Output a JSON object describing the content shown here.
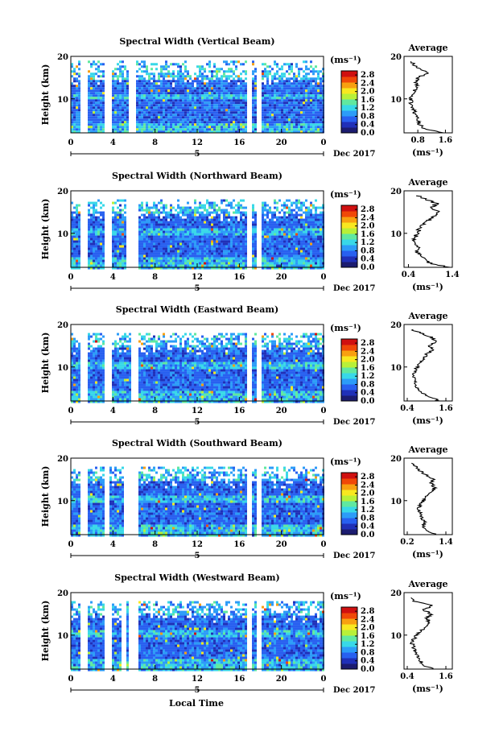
{
  "chart_data": {
    "type": "heatmap",
    "xlabel": "Local Time",
    "ylabel": "Height (km)",
    "x_ticks": [
      "0",
      "4",
      "8",
      "12",
      "16",
      "20",
      "0"
    ],
    "xlim": [
      0,
      24
    ],
    "y_ticks": [
      "20",
      "10"
    ],
    "ylim": [
      2,
      20
    ],
    "day_label": "5",
    "date_label": "Dec 2017",
    "colorbar": {
      "unit_label": "(ms⁻¹)",
      "ticks": [
        "2.8",
        "2.4",
        "2.0",
        "1.6",
        "1.2",
        "0.8",
        "0.4",
        "0.0"
      ],
      "range": [
        0,
        3.0
      ],
      "colors": [
        "#1c1c70",
        "#2030b8",
        "#2860f0",
        "#2c9cf8",
        "#38d8e8",
        "#60e8a0",
        "#b8f038",
        "#f8e820",
        "#f8a010",
        "#f04808",
        "#d01010"
      ]
    },
    "average": {
      "title": "Average",
      "xlabel": "(ms⁻¹)"
    },
    "panels": [
      {
        "title": "Spectral Width (Vertical Beam)",
        "avg_ticks": [
          "0.8",
          "1.6"
        ],
        "avg_xlim": [
          0.4,
          1.8
        ],
        "top_km": 19,
        "gaps": [
          [
            0.9,
            1.6
          ],
          [
            3.2,
            3.7
          ],
          [
            5.3,
            6.0
          ],
          [
            16.6,
            17.0
          ],
          [
            17.5,
            18.0
          ]
        ],
        "profile": [
          [
            2,
            1.5
          ],
          [
            3,
            1.0
          ],
          [
            4,
            0.85
          ],
          [
            5,
            0.8
          ],
          [
            6,
            0.75
          ],
          [
            7,
            0.7
          ],
          [
            8,
            0.65
          ],
          [
            9,
            0.6
          ],
          [
            10,
            0.6
          ],
          [
            11,
            0.65
          ],
          [
            12,
            0.7
          ],
          [
            13,
            0.8
          ],
          [
            14,
            0.75
          ],
          [
            15,
            0.8
          ],
          [
            16,
            1.1
          ],
          [
            17,
            0.85
          ],
          [
            18,
            0.7
          ],
          [
            19,
            0.6
          ]
        ]
      },
      {
        "title": "Spectral Width (Northward Beam)",
        "avg_ticks": [
          "0.4",
          "1.4"
        ],
        "avg_xlim": [
          0.3,
          1.4
        ],
        "top_km": 18,
        "gaps": [
          [
            0.9,
            1.6
          ],
          [
            3.2,
            3.7
          ],
          [
            5.2,
            6.2
          ],
          [
            16.6,
            17.0
          ],
          [
            17.5,
            18.0
          ]
        ],
        "profile": [
          [
            2,
            1.3
          ],
          [
            3,
            0.9
          ],
          [
            4,
            0.75
          ],
          [
            5,
            0.65
          ],
          [
            6,
            0.6
          ],
          [
            7,
            0.6
          ],
          [
            8,
            0.55
          ],
          [
            9,
            0.55
          ],
          [
            10,
            0.6
          ],
          [
            11,
            0.65
          ],
          [
            12,
            0.75
          ],
          [
            13,
            0.85
          ],
          [
            14,
            1.0
          ],
          [
            15,
            1.1
          ],
          [
            16,
            0.9
          ],
          [
            17,
            1.05
          ],
          [
            18,
            0.8
          ],
          [
            19,
            0.55
          ]
        ]
      },
      {
        "title": "Spectral Width (Eastward Beam)",
        "avg_ticks": [
          "0.4",
          "1.6"
        ],
        "avg_xlim": [
          0.3,
          1.8
        ],
        "top_km": 18,
        "gaps": [
          [
            0.9,
            1.6
          ],
          [
            3.2,
            3.7
          ],
          [
            5.6,
            6.2
          ],
          [
            16.6,
            17.0
          ],
          [
            17.5,
            18.0
          ]
        ],
        "profile": [
          [
            2,
            1.4
          ],
          [
            3,
            1.1
          ],
          [
            4,
            0.8
          ],
          [
            5,
            0.7
          ],
          [
            6,
            0.65
          ],
          [
            7,
            0.6
          ],
          [
            8,
            0.6
          ],
          [
            9,
            0.65
          ],
          [
            10,
            0.7
          ],
          [
            11,
            0.8
          ],
          [
            12,
            0.9
          ],
          [
            13,
            1.0
          ],
          [
            14,
            1.2
          ],
          [
            15,
            1.1
          ],
          [
            16,
            1.3
          ],
          [
            17,
            1.15
          ],
          [
            18,
            0.8
          ],
          [
            19,
            0.5
          ]
        ]
      },
      {
        "title": "Spectral Width (Southward Beam)",
        "avg_ticks": [
          "0.2",
          "1.4"
        ],
        "avg_xlim": [
          0.1,
          1.6
        ],
        "top_km": 18,
        "gaps": [
          [
            0.9,
            1.6
          ],
          [
            3.2,
            3.6
          ],
          [
            5.0,
            6.3
          ],
          [
            16.6,
            17.0
          ],
          [
            17.5,
            18.0
          ]
        ],
        "profile": [
          [
            2,
            1.1
          ],
          [
            3,
            0.8
          ],
          [
            4,
            0.7
          ],
          [
            5,
            0.75
          ],
          [
            6,
            0.65
          ],
          [
            7,
            0.6
          ],
          [
            8,
            0.55
          ],
          [
            9,
            0.6
          ],
          [
            10,
            0.7
          ],
          [
            11,
            0.8
          ],
          [
            12,
            0.95
          ],
          [
            13,
            1.05
          ],
          [
            14,
            0.95
          ],
          [
            15,
            1.0
          ],
          [
            16,
            0.8
          ],
          [
            17,
            0.6
          ],
          [
            18,
            0.45
          ],
          [
            19,
            0.35
          ]
        ]
      },
      {
        "title": "Spectral Width (Westward Beam)",
        "avg_ticks": [
          "0.4",
          "1.6"
        ],
        "avg_xlim": [
          0.3,
          1.8
        ],
        "top_km": 18,
        "gaps": [
          [
            0.9,
            1.6
          ],
          [
            3.2,
            3.7
          ],
          [
            4.6,
            5.2
          ],
          [
            5.5,
            6.2
          ],
          [
            16.6,
            17.0
          ],
          [
            17.5,
            18.0
          ]
        ],
        "profile": [
          [
            2,
            1.2
          ],
          [
            3,
            0.9
          ],
          [
            4,
            0.8
          ],
          [
            5,
            0.75
          ],
          [
            6,
            0.65
          ],
          [
            7,
            0.6
          ],
          [
            8,
            0.55
          ],
          [
            9,
            0.6
          ],
          [
            10,
            0.7
          ],
          [
            11,
            0.8
          ],
          [
            12,
            1.0
          ],
          [
            13,
            1.1
          ],
          [
            14,
            1.0
          ],
          [
            15,
            1.15
          ],
          [
            16,
            0.9
          ],
          [
            17,
            1.2
          ],
          [
            18,
            0.6
          ],
          [
            19,
            0.45
          ]
        ]
      }
    ]
  }
}
